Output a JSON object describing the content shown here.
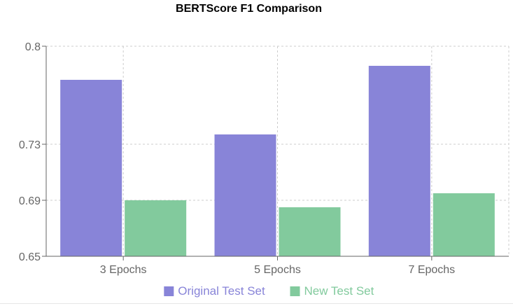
{
  "chart_data": {
    "type": "bar",
    "title": "BERTScore F1 Comparison",
    "categories": [
      "3 Epochs",
      "5 Epochs",
      "7 Epochs"
    ],
    "series": [
      {
        "name": "Original Test Set",
        "color": "#8884d8",
        "values": [
          0.776,
          0.737,
          0.786
        ]
      },
      {
        "name": "New Test Set",
        "color": "#82ca9d",
        "values": [
          0.69,
          0.685,
          0.695
        ]
      }
    ],
    "y_ticks": [
      0.65,
      0.69,
      0.73,
      0.8
    ],
    "ylim": [
      0.65,
      0.8
    ],
    "grid": true,
    "legend": "bottom-center",
    "xlabel": "",
    "ylabel": ""
  }
}
